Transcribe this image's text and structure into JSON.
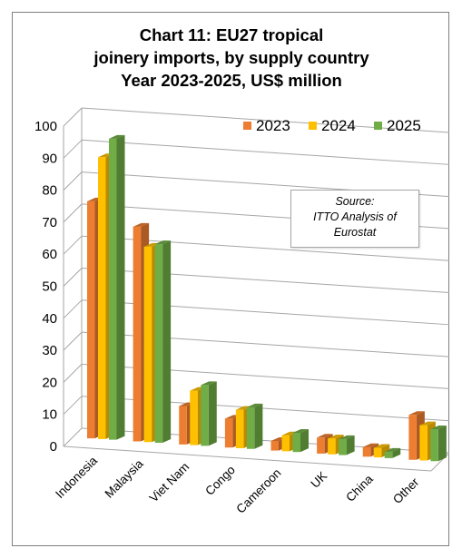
{
  "title_lines": [
    "Chart 11: EU27 tropical",
    "joinery imports, by supply country",
    "Year 2023-2025, US$ million"
  ],
  "source_lines": [
    "Source:",
    "ITTO Analysis of",
    "Eurostat"
  ],
  "colors": {
    "2023": "#ed7d31",
    "2024": "#ffc000",
    "2025": "#70ad47",
    "grid": "#a6a6a6",
    "axis_text": "#000000"
  },
  "chart_data": {
    "type": "bar",
    "title": "Chart 11: EU27 tropical joinery imports, by supply country Year 2023-2025, US$ million",
    "categories": [
      "Indonesia",
      "Malaysia",
      "Viet Nam",
      "Congo",
      "Cameroon",
      "UK",
      "China",
      "Other"
    ],
    "series": [
      {
        "name": "2023",
        "values": [
          74,
          67,
          12,
          9,
          3,
          5,
          3,
          14
        ]
      },
      {
        "name": "2024",
        "values": [
          88,
          61,
          17,
          12,
          5,
          5,
          3,
          11
        ]
      },
      {
        "name": "2025",
        "values": [
          94,
          62,
          19,
          13,
          6,
          5,
          2,
          10
        ]
      }
    ],
    "ylim": [
      0,
      100
    ],
    "yticks": [
      0,
      10,
      20,
      30,
      40,
      50,
      60,
      70,
      80,
      90,
      100
    ],
    "grid": true,
    "legend_position": "top-right",
    "style": "3d clustered column"
  }
}
